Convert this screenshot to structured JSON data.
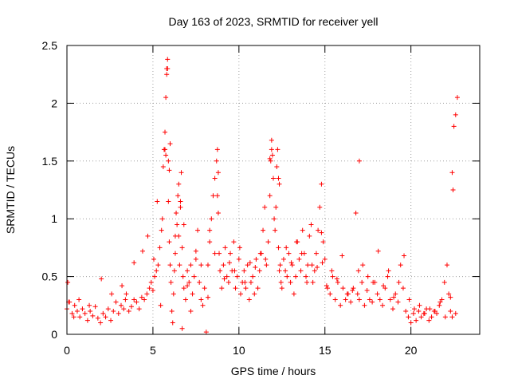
{
  "chart_data": {
    "type": "scatter",
    "title": "Day 163 of 2023, SRMTID for receiver yell",
    "xlabel": "GPS time / hours",
    "ylabel": "SRMTID / TECUs",
    "xlim": [
      0,
      24
    ],
    "ylim": [
      0,
      2.5
    ],
    "xticks": [
      0,
      5,
      10,
      15,
      20
    ],
    "xtick_labels": [
      "0",
      "5",
      "10",
      "15",
      "20"
    ],
    "yticks": [
      0,
      0.5,
      1,
      1.5,
      2,
      2.5
    ],
    "ytick_labels": [
      "0",
      "0.5",
      "1",
      "1.5",
      "2",
      "2.5"
    ],
    "grid": true,
    "marker": "+",
    "color": "#ff0000",
    "series": [
      {
        "name": "yell",
        "x": [
          0.0,
          0.15,
          0.3,
          0.45,
          0.6,
          0.75,
          0.9,
          1.05,
          1.2,
          1.35,
          1.5,
          1.65,
          1.8,
          1.95,
          2.1,
          2.25,
          2.4,
          2.55,
          2.7,
          2.85,
          3.0,
          3.15,
          3.3,
          3.45,
          3.6,
          3.75,
          3.9,
          4.05,
          4.2,
          4.35,
          4.5,
          4.65,
          4.8,
          4.9,
          5.0,
          5.1,
          5.2,
          5.3,
          5.4,
          5.5,
          5.55,
          5.6,
          5.65,
          5.7,
          5.75,
          5.8,
          5.85,
          5.9,
          5.95,
          6.0,
          6.05,
          6.1,
          6.15,
          6.2,
          6.25,
          6.3,
          6.35,
          6.4,
          6.45,
          6.5,
          6.55,
          6.6,
          6.65,
          6.7,
          6.75,
          6.8,
          6.9,
          7.0,
          7.1,
          7.2,
          7.3,
          7.4,
          7.5,
          7.6,
          7.7,
          7.8,
          7.9,
          8.0,
          8.1,
          8.2,
          8.3,
          8.4,
          8.5,
          8.6,
          8.7,
          8.75,
          8.8,
          8.85,
          8.9,
          9.0,
          9.1,
          9.2,
          9.3,
          9.4,
          9.5,
          9.6,
          9.7,
          9.8,
          9.9,
          10.0,
          10.1,
          10.2,
          10.3,
          10.4,
          10.5,
          10.6,
          10.7,
          10.8,
          10.9,
          11.0,
          11.1,
          11.2,
          11.3,
          11.4,
          11.5,
          11.6,
          11.7,
          11.8,
          11.85,
          11.9,
          11.95,
          12.0,
          12.05,
          12.1,
          12.15,
          12.2,
          12.25,
          12.3,
          12.35,
          12.4,
          12.45,
          12.5,
          12.6,
          12.7,
          12.8,
          12.9,
          13.0,
          13.1,
          13.2,
          13.3,
          13.4,
          13.5,
          13.6,
          13.7,
          13.8,
          13.9,
          14.0,
          14.1,
          14.2,
          14.3,
          14.4,
          14.5,
          14.6,
          14.7,
          14.8,
          14.9,
          15.0,
          15.15,
          15.3,
          15.45,
          15.6,
          15.75,
          15.9,
          16.05,
          16.2,
          16.35,
          16.5,
          16.65,
          16.8,
          16.9,
          17.0,
          17.15,
          17.3,
          17.45,
          17.6,
          17.75,
          17.9,
          18.05,
          18.2,
          18.35,
          18.5,
          18.65,
          18.8,
          18.95,
          19.1,
          19.25,
          19.4,
          19.55,
          19.7,
          19.85,
          20.0,
          20.15,
          20.3,
          20.45,
          20.6,
          20.75,
          20.9,
          21.05,
          21.2,
          21.35,
          21.5,
          21.65,
          21.8,
          21.95,
          22.1,
          22.2,
          22.3,
          22.4,
          22.5,
          22.6,
          22.7,
          5.8,
          5.85,
          5.9,
          5.95,
          6.0,
          5.75,
          5.7,
          11.8,
          11.9,
          12.3,
          12.35,
          8.75,
          8.8,
          14.8,
          14.85,
          16.95,
          17.0,
          22.4,
          22.45,
          6.5,
          6.6,
          6.7,
          7.0,
          7.2,
          8.2,
          0.05,
          0.1,
          0.4,
          0.7,
          1.3,
          2.0,
          2.6,
          3.2,
          3.4,
          3.9,
          4.4,
          4.7,
          5.05,
          5.25,
          5.45,
          6.3,
          6.8,
          7.5,
          7.8,
          8.3,
          8.6,
          9.15,
          9.45,
          9.75,
          10.05,
          10.35,
          10.65,
          10.95,
          11.25,
          11.55,
          12.75,
          13.05,
          13.35,
          13.65,
          13.95,
          14.25,
          14.55,
          15.1,
          15.4,
          15.7,
          16.0,
          16.3,
          16.6,
          17.2,
          17.5,
          17.8,
          18.1,
          18.4,
          18.7,
          19.0,
          19.3,
          19.6,
          19.9,
          20.2,
          20.5,
          20.8,
          21.1,
          21.4,
          21.7,
          22.0,
          22.3,
          22.6
        ],
        "y": [
          0.22,
          0.28,
          0.18,
          0.25,
          0.2,
          0.15,
          0.22,
          0.18,
          0.12,
          0.2,
          0.16,
          0.24,
          0.14,
          0.1,
          0.18,
          0.15,
          0.22,
          0.12,
          0.2,
          0.28,
          0.18,
          0.25,
          0.22,
          0.35,
          0.2,
          0.24,
          0.3,
          0.28,
          0.22,
          0.32,
          0.3,
          0.35,
          0.4,
          0.45,
          0.38,
          0.5,
          0.55,
          0.6,
          0.75,
          0.9,
          1.0,
          1.45,
          1.6,
          1.75,
          2.05,
          2.25,
          2.3,
          1.15,
          0.8,
          0.6,
          0.45,
          0.2,
          0.1,
          0.35,
          0.55,
          0.7,
          1.05,
          0.95,
          1.2,
          0.85,
          0.6,
          1.1,
          1.4,
          0.75,
          0.5,
          0.4,
          0.3,
          0.55,
          0.45,
          0.6,
          0.35,
          0.5,
          0.65,
          0.9,
          0.45,
          0.3,
          0.25,
          0.4,
          0.02,
          0.6,
          0.8,
          1.0,
          1.2,
          1.35,
          1.5,
          1.6,
          1.4,
          0.7,
          0.55,
          0.4,
          0.6,
          0.75,
          0.5,
          0.45,
          0.7,
          0.55,
          0.8,
          0.4,
          0.5,
          0.65,
          0.35,
          0.45,
          0.55,
          0.4,
          0.6,
          0.3,
          0.45,
          0.5,
          0.35,
          0.65,
          0.4,
          0.55,
          0.7,
          0.9,
          1.1,
          0.6,
          0.8,
          1.2,
          1.5,
          1.6,
          1.55,
          1.35,
          1.0,
          0.9,
          1.1,
          1.45,
          1.6,
          0.75,
          0.55,
          0.6,
          0.45,
          0.4,
          0.65,
          0.55,
          0.5,
          0.7,
          0.45,
          0.6,
          0.35,
          0.5,
          0.8,
          0.65,
          0.55,
          0.9,
          0.7,
          0.5,
          0.6,
          0.85,
          0.95,
          0.45,
          0.55,
          0.7,
          0.9,
          1.1,
          1.3,
          0.8,
          0.65,
          0.4,
          0.35,
          0.5,
          0.3,
          0.45,
          0.25,
          0.4,
          0.3,
          0.35,
          0.28,
          0.4,
          1.05,
          0.35,
          0.3,
          0.45,
          0.25,
          0.38,
          0.3,
          0.28,
          0.45,
          0.35,
          0.3,
          0.25,
          0.4,
          0.5,
          0.3,
          0.22,
          0.35,
          0.28,
          0.6,
          0.4,
          0.2,
          0.15,
          0.1,
          0.18,
          0.12,
          0.2,
          0.15,
          0.18,
          0.22,
          0.12,
          0.15,
          0.2,
          0.18,
          0.25,
          0.3,
          0.45,
          0.6,
          0.35,
          0.2,
          0.15,
          1.8,
          1.9,
          2.05,
          2.3,
          2.38,
          1.5,
          1.42,
          1.65,
          1.55,
          1.6,
          1.52,
          1.68,
          1.35,
          1.3,
          1.2,
          1.05,
          0.88,
          0.62,
          0.55,
          1.5,
          1.4,
          1.25,
          1.3,
          1.15,
          0.05,
          0.42,
          0.2,
          0.32,
          0.45,
          0.28,
          0.15,
          0.3,
          0.25,
          0.48,
          0.35,
          0.42,
          0.3,
          0.62,
          0.72,
          0.85,
          0.65,
          1.15,
          0.25,
          0.85,
          0.95,
          0.72,
          0.6,
          0.9,
          0.7,
          0.48,
          0.62,
          0.55,
          0.75,
          0.45,
          0.62,
          0.58,
          0.7,
          0.65,
          0.75,
          0.62,
          0.8,
          0.7,
          0.45,
          0.6,
          0.58,
          0.42,
          0.55,
          0.48,
          0.68,
          0.35,
          0.38,
          0.6,
          0.5,
          0.45,
          0.72,
          0.42,
          0.55,
          0.32,
          0.45,
          0.68,
          0.3,
          0.22,
          0.25,
          0.18,
          0.22,
          0.2,
          0.28,
          0.15,
          0.32,
          0.18
        ]
      }
    ]
  }
}
